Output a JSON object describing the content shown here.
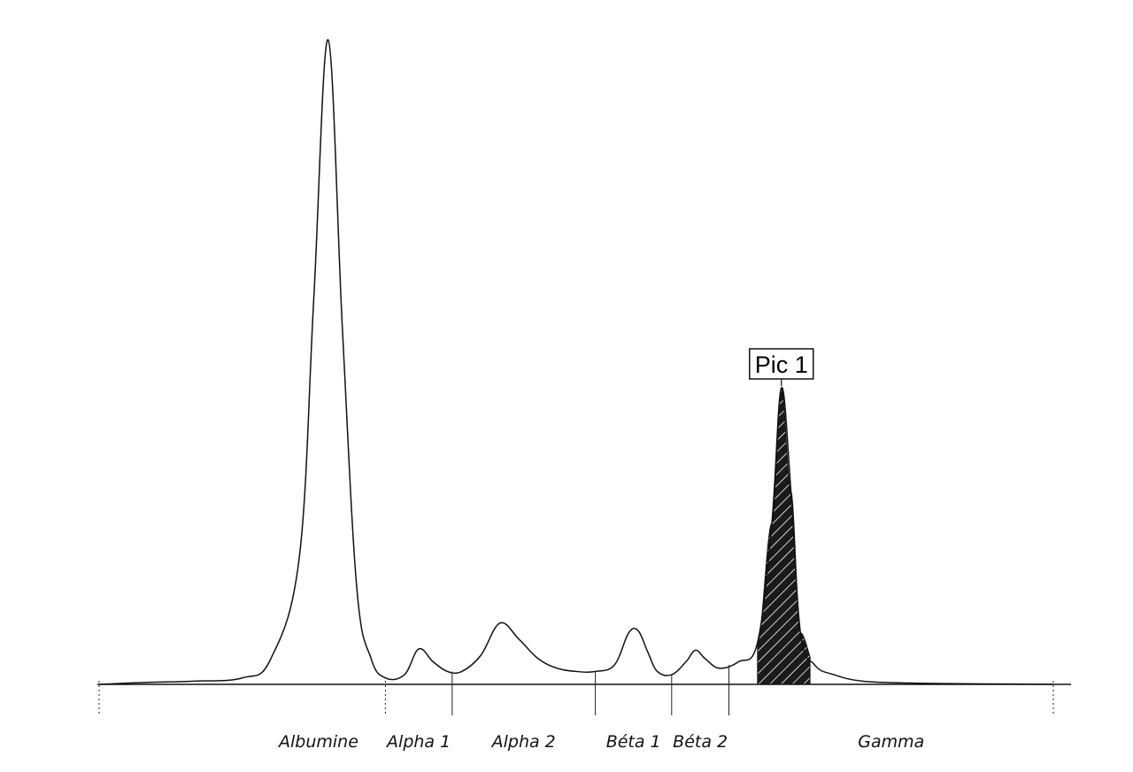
{
  "chart_data": {
    "type": "line",
    "fractions": [
      {
        "name": "Albumine",
        "from": 0,
        "to": 30
      },
      {
        "name": "Alpha 1",
        "from": 30,
        "to": 37
      },
      {
        "name": "Alpha 2",
        "from": 37,
        "to": 52
      },
      {
        "name": "Béta 1",
        "from": 52,
        "to": 60
      },
      {
        "name": "Béta 2",
        "from": 60,
        "to": 66
      },
      {
        "name": "Gamma",
        "from": 66,
        "to": 100
      }
    ],
    "tick_positions": [
      0,
      30,
      37,
      52,
      60,
      66,
      100
    ],
    "x": [
      0,
      5,
      10,
      15,
      18,
      21,
      22.5,
      24,
      25.5,
      27,
      28.5,
      30,
      32,
      33.5,
      35,
      36.5,
      38,
      40,
      42,
      44,
      46,
      48,
      50,
      52,
      54,
      55.5,
      56.5,
      57.5,
      58.5,
      60,
      61.5,
      62.5,
      63.5,
      65,
      67,
      69,
      70.5,
      71.5,
      72.5,
      73.5,
      75,
      77,
      80,
      85,
      90,
      95,
      100
    ],
    "y": [
      0,
      0.3,
      0.5,
      1.0,
      4.0,
      20.0,
      60.0,
      100.0,
      55.0,
      15.0,
      4.0,
      1.0,
      1.5,
      5.5,
      3.5,
      2.0,
      2.0,
      4.5,
      9.5,
      7.0,
      4.0,
      2.5,
      2.0,
      2.0,
      3.0,
      8.0,
      8.3,
      5.0,
      2.0,
      1.5,
      3.5,
      5.3,
      4.0,
      2.5,
      3.5,
      6.5,
      25.0,
      46.0,
      30.0,
      8.0,
      3.0,
      1.5,
      0.5,
      0.2,
      0.1,
      0.05,
      0
    ],
    "shaded_peak": {
      "label": "Pic 1",
      "from": 69.0,
      "to": 74.5,
      "peak_x": 71.5
    },
    "xlabel": "",
    "ylabel": "",
    "ylim": [
      0,
      100
    ],
    "grid": false,
    "legend": "none"
  }
}
